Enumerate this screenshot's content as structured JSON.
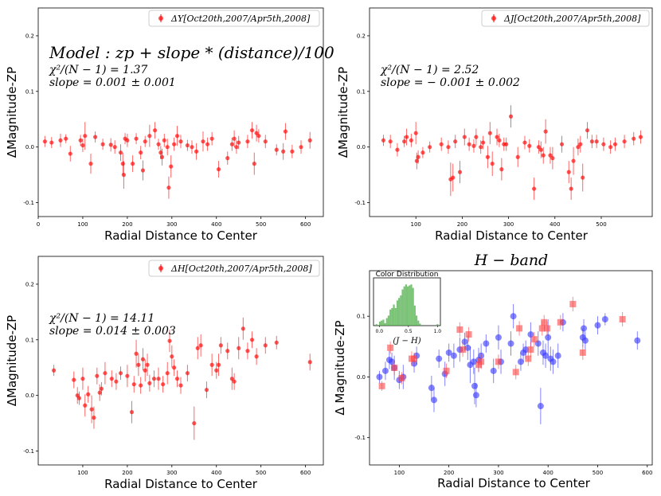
{
  "chart_data": [
    {
      "type": "scatter",
      "panel": "top-left",
      "title": "",
      "xlabel": "Radial Distance to Center",
      "ylabel": "ΔMagnitude-ZP",
      "xlim": [
        0,
        640
      ],
      "ylim": [
        -0.125,
        0.25
      ],
      "xticks": [
        "0",
        "100",
        "200",
        "300",
        "400",
        "500",
        "600"
      ],
      "yticks": [
        "-0.1",
        "0.0",
        "0.1",
        "0.2"
      ],
      "legend": {
        "location": "top-right",
        "label": "ΔY[Oct20th,2007/Apr5th,2008]"
      },
      "annotations": [
        "Model : zp + slope * (distance)/100",
        "χ²/(N − 1) = 1.37",
        "slope = 0.001 ± 0.001"
      ],
      "color": "#ff0000",
      "series": [
        {
          "name": "ΔY",
          "x": [
            15,
            30,
            50,
            62,
            72,
            95,
            100,
            105,
            118,
            128,
            145,
            163,
            172,
            185,
            190,
            192,
            195,
            200,
            212,
            220,
            230,
            235,
            240,
            250,
            262,
            270,
            275,
            278,
            283,
            290,
            293,
            298,
            305,
            312,
            320,
            335,
            345,
            355,
            370,
            380,
            390,
            405,
            425,
            435,
            440,
            445,
            450,
            470,
            480,
            485,
            490,
            495,
            510,
            535,
            550,
            555,
            570,
            590,
            610
          ],
          "y": [
            0.01,
            0.008,
            0.012,
            0.015,
            -0.012,
            0.012,
            0.003,
            0.02,
            -0.03,
            0.018,
            0.005,
            0.004,
            0.0,
            -0.01,
            -0.03,
            -0.05,
            0.015,
            0.012,
            -0.03,
            0.015,
            -0.01,
            -0.042,
            0.01,
            0.02,
            0.03,
            0.005,
            -0.01,
            -0.018,
            0.012,
            0.0,
            -0.073,
            -0.035,
            0.005,
            0.02,
            0.01,
            0.003,
            0.0,
            -0.008,
            0.01,
            0.005,
            0.015,
            -0.04,
            -0.02,
            0.005,
            0.015,
            0.0,
            0.008,
            0.01,
            0.03,
            -0.03,
            0.025,
            0.02,
            0.01,
            -0.005,
            -0.008,
            0.028,
            -0.008,
            0.0,
            0.012
          ],
          "err": [
            0.01,
            0.01,
            0.012,
            0.008,
            0.014,
            0.01,
            0.012,
            0.025,
            0.018,
            0.01,
            0.01,
            0.012,
            0.012,
            0.015,
            0.02,
            0.025,
            0.01,
            0.012,
            0.015,
            0.01,
            0.012,
            0.018,
            0.01,
            0.02,
            0.015,
            0.01,
            0.012,
            0.015,
            0.012,
            0.015,
            0.02,
            0.02,
            0.012,
            0.018,
            0.012,
            0.01,
            0.012,
            0.015,
            0.018,
            0.012,
            0.012,
            0.015,
            0.012,
            0.012,
            0.015,
            0.012,
            0.012,
            0.012,
            0.015,
            0.02,
            0.015,
            0.012,
            0.012,
            0.01,
            0.015,
            0.015,
            0.012,
            0.012,
            0.015
          ]
        }
      ]
    },
    {
      "type": "scatter",
      "panel": "top-right",
      "title": "",
      "xlabel": "Radial Distance to Center",
      "ylabel": "ΔMagnitude-ZP",
      "xlim": [
        0,
        610
      ],
      "ylim": [
        -0.125,
        0.25
      ],
      "xticks": [
        "100",
        "200",
        "300",
        "400",
        "500"
      ],
      "yticks": [
        "-0.1",
        "0.0",
        "0.1",
        "0.2"
      ],
      "legend": {
        "location": "top-right",
        "label": "ΔJ[Oct20th,2007/Apr5th,2008]"
      },
      "annotations": [
        "χ²/(N − 1) = 2.52",
        "slope = − 0.001 ± 0.002"
      ],
      "color": "#ff0000",
      "series": [
        {
          "name": "ΔJ",
          "x": [
            30,
            45,
            60,
            75,
            80,
            90,
            100,
            102,
            105,
            115,
            130,
            155,
            170,
            175,
            180,
            185,
            195,
            205,
            215,
            225,
            230,
            240,
            245,
            255,
            260,
            265,
            275,
            280,
            285,
            290,
            295,
            305,
            320,
            335,
            345,
            355,
            365,
            370,
            375,
            380,
            390,
            395,
            415,
            430,
            435,
            440,
            450,
            455,
            460,
            470,
            480,
            490,
            505,
            520,
            530,
            550,
            570,
            585
          ],
          "y": [
            0.012,
            0.01,
            -0.005,
            0.01,
            0.018,
            0.012,
            0.025,
            -0.025,
            -0.018,
            -0.01,
            0.0,
            0.005,
            0.0,
            -0.058,
            -0.055,
            0.01,
            -0.045,
            0.018,
            0.005,
            0.002,
            0.018,
            0.0,
            0.008,
            -0.018,
            0.025,
            -0.03,
            0.018,
            0.012,
            -0.04,
            0.005,
            0.005,
            0.055,
            -0.018,
            0.008,
            0.002,
            -0.075,
            0.0,
            -0.005,
            -0.015,
            0.028,
            -0.015,
            -0.02,
            0.005,
            -0.045,
            -0.075,
            -0.025,
            0.0,
            0.005,
            -0.055,
            0.03,
            0.01,
            0.01,
            0.005,
            0.0,
            0.005,
            0.01,
            0.015,
            0.018
          ],
          "err": [
            0.01,
            0.012,
            0.012,
            0.01,
            0.015,
            0.012,
            0.02,
            0.015,
            0.012,
            0.01,
            0.01,
            0.012,
            0.012,
            0.03,
            0.025,
            0.012,
            0.02,
            0.015,
            0.012,
            0.012,
            0.015,
            0.012,
            0.012,
            0.02,
            0.02,
            0.022,
            0.015,
            0.012,
            0.02,
            0.012,
            0.012,
            0.02,
            0.018,
            0.012,
            0.012,
            0.02,
            0.012,
            0.015,
            0.015,
            0.022,
            0.015,
            0.02,
            0.015,
            0.02,
            0.02,
            0.025,
            0.015,
            0.015,
            0.025,
            0.015,
            0.012,
            0.012,
            0.012,
            0.012,
            0.012,
            0.012,
            0.012,
            0.012
          ]
        }
      ]
    },
    {
      "type": "scatter",
      "panel": "bottom-left",
      "title": "",
      "xlabel": "Radial Distance to Center",
      "ylabel": "ΔMagnitude-ZP",
      "xlim": [
        0,
        640
      ],
      "ylim": [
        -0.125,
        0.25
      ],
      "xticks": [
        "100",
        "200",
        "300",
        "400",
        "500",
        "600"
      ],
      "yticks": [
        "-0.1",
        "0.0",
        "0.1",
        "0.2"
      ],
      "legend": {
        "location": "top-right",
        "label": "ΔH[Oct20th,2007/Apr5th,2008]"
      },
      "annotations": [
        "χ²/(N − 1) = 14.11",
        "slope = 0.014 ± 0.003"
      ],
      "color": "#ff0000",
      "series": [
        {
          "name": "ΔH",
          "x": [
            35,
            80,
            88,
            92,
            100,
            105,
            112,
            120,
            125,
            132,
            138,
            142,
            150,
            165,
            175,
            185,
            200,
            210,
            215,
            220,
            225,
            230,
            235,
            240,
            245,
            250,
            260,
            270,
            280,
            290,
            295,
            300,
            305,
            312,
            320,
            335,
            350,
            358,
            365,
            378,
            390,
            400,
            405,
            410,
            425,
            435,
            440,
            450,
            460,
            470,
            480,
            490,
            510,
            535,
            610
          ],
          "y": [
            0.045,
            0.028,
            0.0,
            -0.005,
            0.03,
            -0.018,
            0.002,
            -0.025,
            -0.04,
            0.035,
            0.005,
            0.012,
            0.04,
            0.03,
            0.025,
            0.04,
            0.035,
            -0.03,
            0.02,
            0.075,
            0.055,
            0.018,
            0.065,
            0.045,
            0.055,
            0.022,
            0.03,
            0.03,
            0.02,
            0.04,
            0.098,
            0.07,
            0.05,
            0.03,
            0.018,
            0.04,
            -0.05,
            0.085,
            0.09,
            0.01,
            0.055,
            0.045,
            0.055,
            0.09,
            0.08,
            0.03,
            0.025,
            0.085,
            0.12,
            0.08,
            0.1,
            0.07,
            0.09,
            0.095,
            0.06
          ],
          "err": [
            0.01,
            0.015,
            0.015,
            0.012,
            0.02,
            0.02,
            0.015,
            0.025,
            0.02,
            0.015,
            0.015,
            0.012,
            0.02,
            0.015,
            0.015,
            0.012,
            0.02,
            0.02,
            0.015,
            0.025,
            0.02,
            0.015,
            0.02,
            0.02,
            0.02,
            0.015,
            0.015,
            0.02,
            0.015,
            0.02,
            0.02,
            0.02,
            0.015,
            0.015,
            0.015,
            0.015,
            0.03,
            0.02,
            0.02,
            0.015,
            0.02,
            0.015,
            0.02,
            0.015,
            0.015,
            0.02,
            0.015,
            0.02,
            0.02,
            0.015,
            0.015,
            0.015,
            0.015,
            0.012,
            0.015
          ]
        }
      ]
    },
    {
      "type": "scatter",
      "panel": "bottom-right",
      "title": "H − band",
      "xlabel": "Radial Distance to Center",
      "ylabel": "Δ Magnitude-ZP",
      "xlim": [
        40,
        610
      ],
      "ylim": [
        -0.145,
        0.175
      ],
      "xticks": [
        "100",
        "200",
        "300",
        "400",
        "500",
        "600"
      ],
      "yticks": [
        "-0.1",
        "0.0",
        "0.1"
      ],
      "colors": {
        "blue": "#3333ff",
        "red": "#ff4444"
      },
      "series": [
        {
          "name": "blue",
          "x": [
            60,
            72,
            80,
            85,
            90,
            100,
            108,
            130,
            135,
            165,
            170,
            180,
            192,
            200,
            210,
            222,
            232,
            238,
            243,
            250,
            252,
            255,
            260,
            265,
            275,
            290,
            300,
            305,
            325,
            330,
            345,
            350,
            355,
            365,
            380,
            385,
            390,
            395,
            400,
            405,
            410,
            420,
            430,
            470,
            472,
            475,
            500,
            515,
            580
          ],
          "y": [
            0.0,
            0.01,
            0.028,
            0.025,
            0.015,
            -0.005,
            0.0,
            0.022,
            0.035,
            -0.018,
            -0.038,
            0.03,
            0.005,
            0.04,
            0.035,
            0.045,
            0.058,
            0.048,
            0.02,
            0.025,
            -0.015,
            -0.03,
            0.028,
            0.035,
            0.055,
            0.01,
            0.065,
            0.025,
            0.055,
            0.1,
            0.025,
            0.04,
            0.045,
            0.07,
            0.055,
            -0.048,
            0.04,
            0.035,
            0.065,
            0.03,
            0.025,
            0.035,
            0.09,
            0.065,
            0.08,
            0.06,
            0.085,
            0.095,
            0.06
          ],
          "err": [
            0.01,
            0.015,
            0.015,
            0.015,
            0.02,
            0.015,
            0.02,
            0.015,
            0.015,
            0.02,
            0.02,
            0.015,
            0.02,
            0.015,
            0.02,
            0.02,
            0.015,
            0.02,
            0.03,
            0.02,
            0.03,
            0.02,
            0.02,
            0.02,
            0.015,
            0.02,
            0.02,
            0.02,
            0.02,
            0.02,
            0.015,
            0.015,
            0.015,
            0.02,
            0.02,
            0.03,
            0.02,
            0.02,
            0.03,
            0.02,
            0.02,
            0.02,
            0.015,
            0.015,
            0.015,
            0.015,
            0.015,
            0.01,
            0.015
          ]
        },
        {
          "name": "red",
          "x": [
            65,
            82,
            90,
            105,
            125,
            130,
            195,
            222,
            228,
            240,
            260,
            265,
            300,
            335,
            342,
            360,
            365,
            372,
            388,
            392,
            398,
            425,
            450,
            470,
            550
          ],
          "y": [
            -0.015,
            0.048,
            0.015,
            -0.002,
            0.03,
            0.03,
            0.01,
            0.078,
            0.045,
            0.07,
            0.02,
            0.025,
            0.025,
            0.008,
            0.08,
            0.03,
            0.045,
            0.062,
            0.08,
            0.09,
            0.08,
            0.09,
            0.12,
            0.04,
            0.095
          ],
          "err": [
            0.008,
            0.01,
            0.012,
            0.01,
            0.012,
            0.01,
            0.012,
            0.012,
            0.012,
            0.012,
            0.012,
            0.012,
            0.012,
            0.012,
            0.012,
            0.012,
            0.012,
            0.012,
            0.012,
            0.012,
            0.012,
            0.012,
            0.012,
            0.012,
            0.012
          ]
        }
      ],
      "inset": {
        "type": "bar",
        "title": "Color Distribution",
        "xlabel": "(J − H)",
        "xlim": [
          -0.1,
          1.05
        ],
        "ylim": [
          0,
          0.95
        ],
        "xticks": [
          "0.0",
          "0.5",
          "1.0"
        ],
        "color": "#4daf4a",
        "categories": [
          -0.05,
          -0.02,
          0.01,
          0.04,
          0.07,
          0.1,
          0.13,
          0.16,
          0.19,
          0.22,
          0.25,
          0.28,
          0.31,
          0.34,
          0.37,
          0.4,
          0.43,
          0.46,
          0.49,
          0.52,
          0.55,
          0.58,
          0.61,
          0.64,
          0.67,
          0.7,
          1.0
        ],
        "values": [
          0.03,
          0.0,
          0.08,
          0.1,
          0.12,
          0.05,
          0.15,
          0.2,
          0.32,
          0.35,
          0.42,
          0.35,
          0.5,
          0.55,
          0.6,
          0.72,
          0.78,
          0.82,
          0.78,
          0.8,
          0.82,
          0.75,
          0.4,
          0.2,
          0.1,
          0.04,
          0.03
        ]
      }
    }
  ]
}
